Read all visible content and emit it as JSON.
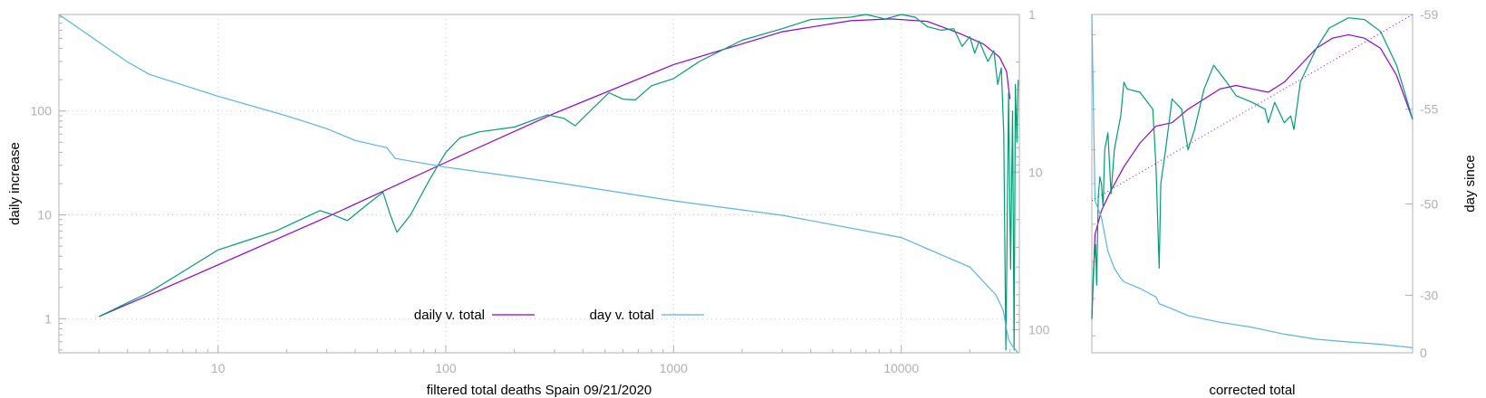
{
  "colors": {
    "purple": "#9400d3",
    "green": "#009e73",
    "blue": "#56b4e9",
    "axis": "#b0b0b0",
    "grid": "#cccccc"
  },
  "chart_data": [
    {
      "type": "line",
      "xlabel": "filtered total deaths Spain 09/21/2020",
      "ylabel": "daily increase",
      "x_scale": "log",
      "y_scale": "log",
      "y2_scale": "log-reversed",
      "xlim": [
        2,
        33000
      ],
      "ylim": [
        0.47,
        850
      ],
      "y2lim": [
        1,
        140
      ],
      "x_ticks": [
        "10",
        "100",
        "1000",
        "10000"
      ],
      "y_ticks": [
        "1",
        "10",
        "100"
      ],
      "y2_ticks": [
        "1",
        "10",
        "100"
      ],
      "grid": true,
      "legend_position": "bottom-center",
      "series": [
        {
          "name": "daily v. total",
          "color": "#9400d3",
          "axis": "left",
          "points": [
            [
              3,
              1.05
            ],
            [
              5,
              1.7
            ],
            [
              10,
              3.3
            ],
            [
              30,
              9.5
            ],
            [
              100,
              32
            ],
            [
              300,
              95
            ],
            [
              1000,
              280
            ],
            [
              3000,
              580
            ],
            [
              6000,
              740
            ],
            [
              9000,
              770
            ],
            [
              13000,
              730
            ],
            [
              18000,
              560
            ],
            [
              23000,
              440
            ],
            [
              27000,
              330
            ],
            [
              29000,
              240
            ],
            [
              30000,
              130
            ]
          ]
        },
        {
          "name": "",
          "color": "#009e73",
          "axis": "left",
          "points": [
            [
              3,
              1.05
            ],
            [
              5,
              1.8
            ],
            [
              10,
              4.6
            ],
            [
              18,
              7
            ],
            [
              28,
              11
            ],
            [
              32,
              10
            ],
            [
              37,
              8.8
            ],
            [
              45,
              12.5
            ],
            [
              53,
              16.5
            ],
            [
              57,
              10
            ],
            [
              61,
              6.8
            ],
            [
              70,
              10
            ],
            [
              85,
              22
            ],
            [
              100,
              40
            ],
            [
              115,
              55
            ],
            [
              140,
              63
            ],
            [
              200,
              70
            ],
            [
              280,
              92
            ],
            [
              330,
              85
            ],
            [
              370,
              72
            ],
            [
              420,
              95
            ],
            [
              520,
              150
            ],
            [
              600,
              130
            ],
            [
              680,
              128
            ],
            [
              800,
              175
            ],
            [
              1000,
              205
            ],
            [
              1300,
              300
            ],
            [
              2000,
              480
            ],
            [
              3000,
              620
            ],
            [
              4000,
              760
            ],
            [
              6000,
              800
            ],
            [
              7000,
              850
            ],
            [
              8500,
              770
            ],
            [
              10000,
              860
            ],
            [
              11500,
              800
            ],
            [
              13000,
              650
            ],
            [
              15000,
              600
            ],
            [
              17000,
              620
            ],
            [
              18500,
              420
            ],
            [
              20000,
              520
            ],
            [
              21000,
              360
            ],
            [
              22000,
              470
            ],
            [
              24000,
              300
            ],
            [
              25500,
              380
            ],
            [
              26500,
              180
            ],
            [
              27500,
              260
            ],
            [
              28200,
              60
            ],
            [
              28800,
              0.5
            ],
            [
              29200,
              8
            ],
            [
              29600,
              150
            ],
            [
              30200,
              3
            ],
            [
              30800,
              100
            ],
            [
              31300,
              0.5
            ],
            [
              31700,
              180
            ],
            [
              32200,
              50
            ],
            [
              32600,
              200
            ]
          ]
        },
        {
          "name": "day v. total",
          "color": "#56b4e9",
          "axis": "right",
          "points": [
            [
              2,
              1
            ],
            [
              3,
              1.5
            ],
            [
              4,
              2
            ],
            [
              5,
              2.4
            ],
            [
              7,
              2.8
            ],
            [
              10,
              3.3
            ],
            [
              20,
              4.4
            ],
            [
              30,
              5.3
            ],
            [
              40,
              6.3
            ],
            [
              55,
              7
            ],
            [
              60,
              8.2
            ],
            [
              100,
              9.3
            ],
            [
              300,
              11.6
            ],
            [
              1000,
              15.2
            ],
            [
              3000,
              18.8
            ],
            [
              10000,
              26
            ],
            [
              20000,
              40
            ],
            [
              26000,
              60
            ],
            [
              28000,
              75
            ],
            [
              29000,
              100
            ],
            [
              29600,
              115
            ],
            [
              30500,
              125
            ],
            [
              31500,
              132
            ],
            [
              32500,
              140
            ]
          ]
        }
      ]
    },
    {
      "type": "line",
      "xlabel": "corrected total",
      "ylabel": "day since",
      "y_ticks": [
        "-59",
        "-55",
        "-50",
        "-30",
        "0"
      ],
      "ylim": [
        "0",
        "-59"
      ],
      "grid": false,
      "series": [
        {
          "name": "",
          "color": "#9400d3",
          "points": [
            [
              0,
              0.1
            ],
            [
              0.01,
              0.35
            ],
            [
              0.03,
              0.42
            ],
            [
              0.06,
              0.48
            ],
            [
              0.1,
              0.55
            ],
            [
              0.15,
              0.62
            ],
            [
              0.2,
              0.67
            ],
            [
              0.25,
              0.68
            ],
            [
              0.3,
              0.72
            ],
            [
              0.35,
              0.75
            ],
            [
              0.4,
              0.78
            ],
            [
              0.45,
              0.79
            ],
            [
              0.5,
              0.78
            ],
            [
              0.55,
              0.77
            ],
            [
              0.6,
              0.8
            ],
            [
              0.65,
              0.85
            ],
            [
              0.7,
              0.9
            ],
            [
              0.75,
              0.93
            ],
            [
              0.8,
              0.94
            ],
            [
              0.85,
              0.93
            ],
            [
              0.9,
              0.9
            ],
            [
              0.95,
              0.82
            ],
            [
              1,
              0.69
            ]
          ]
        },
        {
          "name": "",
          "color": "#009e73",
          "points": [
            [
              0,
              0.1
            ],
            [
              0.005,
              0.25
            ],
            [
              0.012,
              0.32
            ],
            [
              0.015,
              0.2
            ],
            [
              0.02,
              0.46
            ],
            [
              0.025,
              0.52
            ],
            [
              0.03,
              0.5
            ],
            [
              0.035,
              0.43
            ],
            [
              0.04,
              0.6
            ],
            [
              0.05,
              0.65
            ],
            [
              0.06,
              0.47
            ],
            [
              0.07,
              0.6
            ],
            [
              0.08,
              0.65
            ],
            [
              0.09,
              0.7
            ],
            [
              0.1,
              0.8
            ],
            [
              0.11,
              0.78
            ],
            [
              0.15,
              0.77
            ],
            [
              0.19,
              0.72
            ],
            [
              0.2,
              0.55
            ],
            [
              0.21,
              0.25
            ],
            [
              0.215,
              0.5
            ],
            [
              0.23,
              0.6
            ],
            [
              0.25,
              0.75
            ],
            [
              0.28,
              0.72
            ],
            [
              0.3,
              0.6
            ],
            [
              0.32,
              0.66
            ],
            [
              0.35,
              0.78
            ],
            [
              0.38,
              0.85
            ],
            [
              0.42,
              0.8
            ],
            [
              0.45,
              0.76
            ],
            [
              0.5,
              0.74
            ],
            [
              0.54,
              0.72
            ],
            [
              0.55,
              0.68
            ],
            [
              0.57,
              0.74
            ],
            [
              0.6,
              0.68
            ],
            [
              0.62,
              0.7
            ],
            [
              0.63,
              0.66
            ],
            [
              0.65,
              0.8
            ],
            [
              0.7,
              0.9
            ],
            [
              0.74,
              0.96
            ],
            [
              0.8,
              0.99
            ],
            [
              0.85,
              0.985
            ],
            [
              0.9,
              0.95
            ],
            [
              0.95,
              0.85
            ],
            [
              1,
              0.69
            ]
          ]
        },
        {
          "name": "",
          "color": "#56b4e9",
          "points": [
            [
              0,
              1
            ],
            [
              0.01,
              0.45
            ],
            [
              0.03,
              0.4
            ],
            [
              0.05,
              0.3
            ],
            [
              0.07,
              0.25
            ],
            [
              0.09,
              0.22
            ],
            [
              0.1,
              0.21
            ],
            [
              0.15,
              0.19
            ],
            [
              0.2,
              0.165
            ],
            [
              0.21,
              0.145
            ],
            [
              0.25,
              0.13
            ],
            [
              0.3,
              0.11
            ],
            [
              0.4,
              0.09
            ],
            [
              0.5,
              0.075
            ],
            [
              0.6,
              0.055
            ],
            [
              0.7,
              0.04
            ],
            [
              0.8,
              0.032
            ],
            [
              0.9,
              0.025
            ],
            [
              1,
              0.015
            ]
          ]
        },
        {
          "name": "",
          "color": "#9400d3",
          "style": "dotted",
          "points": [
            [
              0,
              0.45
            ],
            [
              1,
              1
            ]
          ]
        }
      ]
    }
  ]
}
